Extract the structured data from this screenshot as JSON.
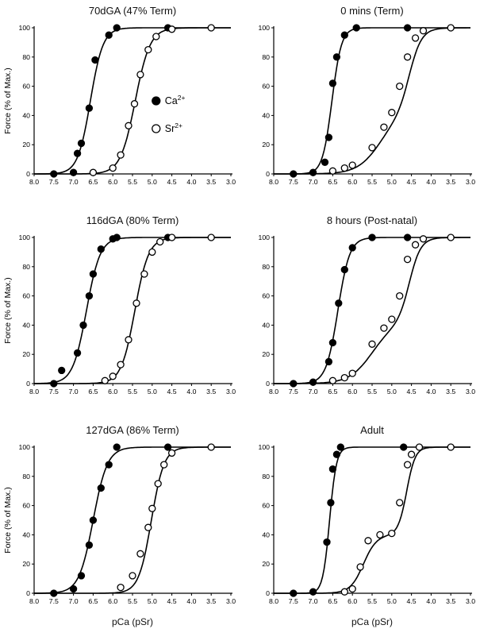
{
  "colors": {
    "ink": "#000000",
    "bg": "#ffffff"
  },
  "axes": {
    "x_range": [
      8.0,
      3.0
    ],
    "y_range": [
      0,
      100
    ],
    "x_ticks": [
      8.0,
      7.5,
      7.0,
      6.5,
      6.0,
      5.5,
      5.0,
      4.5,
      4.0,
      3.5,
      3.0
    ],
    "y_ticks": [
      0,
      20,
      40,
      60,
      80,
      100
    ],
    "y_label": "Force (% of Max.)",
    "x_label": "pCa (pSr)",
    "grid": "off"
  },
  "legend": {
    "position": "inside-right",
    "entries": [
      {
        "label": "Ca",
        "sup": "2+",
        "marker": "filled"
      },
      {
        "label": "Sr",
        "sup": "2+",
        "marker": "open"
      }
    ]
  },
  "chart_data": [
    {
      "type": "line",
      "title": "70dGA (47% Term)",
      "x_label": "",
      "y_label_shown": true,
      "legend_shown": true,
      "series": [
        {
          "name": "Ca2+",
          "marker": "filled",
          "pCa50": 6.57,
          "curve": [
            {
              "amp": 100,
              "pk": 6.57,
              "n": 2.7
            }
          ],
          "points": [
            [
              7.5,
              0
            ],
            [
              7.0,
              1
            ],
            [
              6.9,
              14
            ],
            [
              6.8,
              21
            ],
            [
              6.6,
              45
            ],
            [
              6.45,
              78
            ],
            [
              6.1,
              95
            ],
            [
              5.9,
              100
            ],
            [
              4.6,
              100
            ]
          ]
        },
        {
          "name": "Sr2+",
          "marker": "open",
          "pSr50": 5.43,
          "curve": [
            {
              "amp": 100,
              "pk": 5.43,
              "n": 2.3
            }
          ],
          "points": [
            [
              6.5,
              1
            ],
            [
              6.0,
              4
            ],
            [
              5.8,
              13
            ],
            [
              5.6,
              33
            ],
            [
              5.45,
              48
            ],
            [
              5.3,
              68
            ],
            [
              5.1,
              85
            ],
            [
              4.9,
              94
            ],
            [
              4.5,
              99
            ],
            [
              3.5,
              100
            ]
          ]
        }
      ]
    },
    {
      "type": "line",
      "title": "0 mins (Term)",
      "x_label": "",
      "y_label_shown": false,
      "legend_shown": false,
      "series": [
        {
          "name": "Ca2+",
          "marker": "filled",
          "pCa50": 6.52,
          "curve": [
            {
              "amp": 100,
              "pk": 6.52,
              "n": 3.6
            }
          ],
          "points": [
            [
              7.5,
              0
            ],
            [
              7.0,
              1
            ],
            [
              6.7,
              8
            ],
            [
              6.6,
              25
            ],
            [
              6.5,
              62
            ],
            [
              6.4,
              80
            ],
            [
              6.2,
              95
            ],
            [
              5.9,
              100
            ],
            [
              4.6,
              100
            ]
          ]
        },
        {
          "name": "Sr2+",
          "marker": "open",
          "pSr50": 4.7,
          "curve": [
            {
              "amp": 42,
              "pk": 5.3,
              "n": 1.5
            },
            {
              "amp": 58,
              "pk": 4.55,
              "n": 2.8
            }
          ],
          "points": [
            [
              6.5,
              2
            ],
            [
              6.2,
              4
            ],
            [
              6.0,
              6
            ],
            [
              5.5,
              18
            ],
            [
              5.2,
              32
            ],
            [
              5.0,
              42
            ],
            [
              4.8,
              60
            ],
            [
              4.6,
              80
            ],
            [
              4.4,
              93
            ],
            [
              4.2,
              98
            ],
            [
              3.5,
              100
            ]
          ]
        }
      ]
    },
    {
      "type": "line",
      "title": "116dGA (80% Term)",
      "x_label": "",
      "y_label_shown": true,
      "legend_shown": false,
      "series": [
        {
          "name": "Ca2+",
          "marker": "filled",
          "pCa50": 6.67,
          "curve": [
            {
              "amp": 100,
              "pk": 6.67,
              "n": 2.5
            }
          ],
          "points": [
            [
              7.5,
              0
            ],
            [
              7.3,
              9
            ],
            [
              6.9,
              21
            ],
            [
              6.75,
              40
            ],
            [
              6.6,
              60
            ],
            [
              6.5,
              75
            ],
            [
              6.3,
              92
            ],
            [
              6.0,
              99
            ],
            [
              5.9,
              100
            ],
            [
              4.6,
              100
            ]
          ]
        },
        {
          "name": "Sr2+",
          "marker": "open",
          "pSr50": 5.44,
          "curve": [
            {
              "amp": 100,
              "pk": 5.44,
              "n": 2.5
            }
          ],
          "points": [
            [
              6.2,
              2
            ],
            [
              6.0,
              5
            ],
            [
              5.8,
              13
            ],
            [
              5.6,
              30
            ],
            [
              5.4,
              55
            ],
            [
              5.2,
              75
            ],
            [
              5.0,
              90
            ],
            [
              4.8,
              97
            ],
            [
              4.5,
              100
            ],
            [
              3.5,
              100
            ]
          ]
        }
      ]
    },
    {
      "type": "line",
      "title": "8 hours (Post-natal)",
      "x_label": "",
      "y_label_shown": false,
      "legend_shown": false,
      "series": [
        {
          "name": "Ca2+",
          "marker": "filled",
          "pCa50": 6.37,
          "curve": [
            {
              "amp": 100,
              "pk": 6.37,
              "n": 2.9
            }
          ],
          "points": [
            [
              7.5,
              0
            ],
            [
              7.0,
              1
            ],
            [
              6.6,
              15
            ],
            [
              6.5,
              28
            ],
            [
              6.35,
              55
            ],
            [
              6.2,
              78
            ],
            [
              6.0,
              93
            ],
            [
              5.5,
              100
            ],
            [
              4.6,
              100
            ]
          ]
        },
        {
          "name": "Sr2+",
          "marker": "open",
          "pSr50": 4.75,
          "curve": [
            {
              "amp": 42,
              "pk": 5.5,
              "n": 1.5
            },
            {
              "amp": 58,
              "pk": 4.55,
              "n": 3.0
            }
          ],
          "points": [
            [
              6.5,
              2
            ],
            [
              6.2,
              4
            ],
            [
              6.0,
              7
            ],
            [
              5.5,
              27
            ],
            [
              5.2,
              38
            ],
            [
              5.0,
              44
            ],
            [
              4.8,
              60
            ],
            [
              4.6,
              85
            ],
            [
              4.4,
              95
            ],
            [
              4.2,
              99
            ],
            [
              3.5,
              100
            ]
          ]
        }
      ]
    },
    {
      "type": "line",
      "title": "127dGA (86% Term)",
      "x_label": "pCa (pSr)",
      "y_label_shown": true,
      "legend_shown": false,
      "series": [
        {
          "name": "Ca2+",
          "marker": "filled",
          "pCa50": 6.5,
          "curve": [
            {
              "amp": 100,
              "pk": 6.5,
              "n": 2.4
            }
          ],
          "points": [
            [
              7.5,
              0
            ],
            [
              7.0,
              3
            ],
            [
              6.8,
              12
            ],
            [
              6.6,
              33
            ],
            [
              6.5,
              50
            ],
            [
              6.3,
              72
            ],
            [
              6.1,
              88
            ],
            [
              5.9,
              100
            ],
            [
              4.6,
              100
            ]
          ]
        },
        {
          "name": "Sr2+",
          "marker": "open",
          "pSr50": 5.02,
          "curve": [
            {
              "amp": 100,
              "pk": 5.02,
              "n": 2.7
            }
          ],
          "points": [
            [
              5.8,
              4
            ],
            [
              5.5,
              12
            ],
            [
              5.3,
              27
            ],
            [
              5.1,
              45
            ],
            [
              5.0,
              58
            ],
            [
              4.85,
              75
            ],
            [
              4.7,
              88
            ],
            [
              4.5,
              96
            ],
            [
              3.5,
              100
            ]
          ]
        }
      ]
    },
    {
      "type": "line",
      "title": "Adult",
      "x_label": "pCa (pSr)",
      "y_label_shown": false,
      "legend_shown": false,
      "series": [
        {
          "name": "Ca2+",
          "marker": "filled",
          "pCa50": 6.58,
          "curve": [
            {
              "amp": 100,
              "pk": 6.58,
              "n": 5.0
            }
          ],
          "points": [
            [
              7.5,
              0
            ],
            [
              7.0,
              1
            ],
            [
              6.65,
              35
            ],
            [
              6.55,
              62
            ],
            [
              6.5,
              85
            ],
            [
              6.4,
              95
            ],
            [
              6.3,
              100
            ],
            [
              4.7,
              100
            ]
          ]
        },
        {
          "name": "Sr2+",
          "marker": "open",
          "pSr50": 4.7,
          "curve": [
            {
              "amp": 40,
              "pk": 5.72,
              "n": 2.6
            },
            {
              "amp": 60,
              "pk": 4.62,
              "n": 4.0
            }
          ],
          "points": [
            [
              6.2,
              1
            ],
            [
              6.0,
              3
            ],
            [
              5.8,
              18
            ],
            [
              5.6,
              36
            ],
            [
              5.3,
              40
            ],
            [
              5.0,
              41
            ],
            [
              4.8,
              62
            ],
            [
              4.6,
              88
            ],
            [
              4.5,
              95
            ],
            [
              4.3,
              100
            ],
            [
              3.5,
              100
            ]
          ]
        }
      ]
    }
  ]
}
